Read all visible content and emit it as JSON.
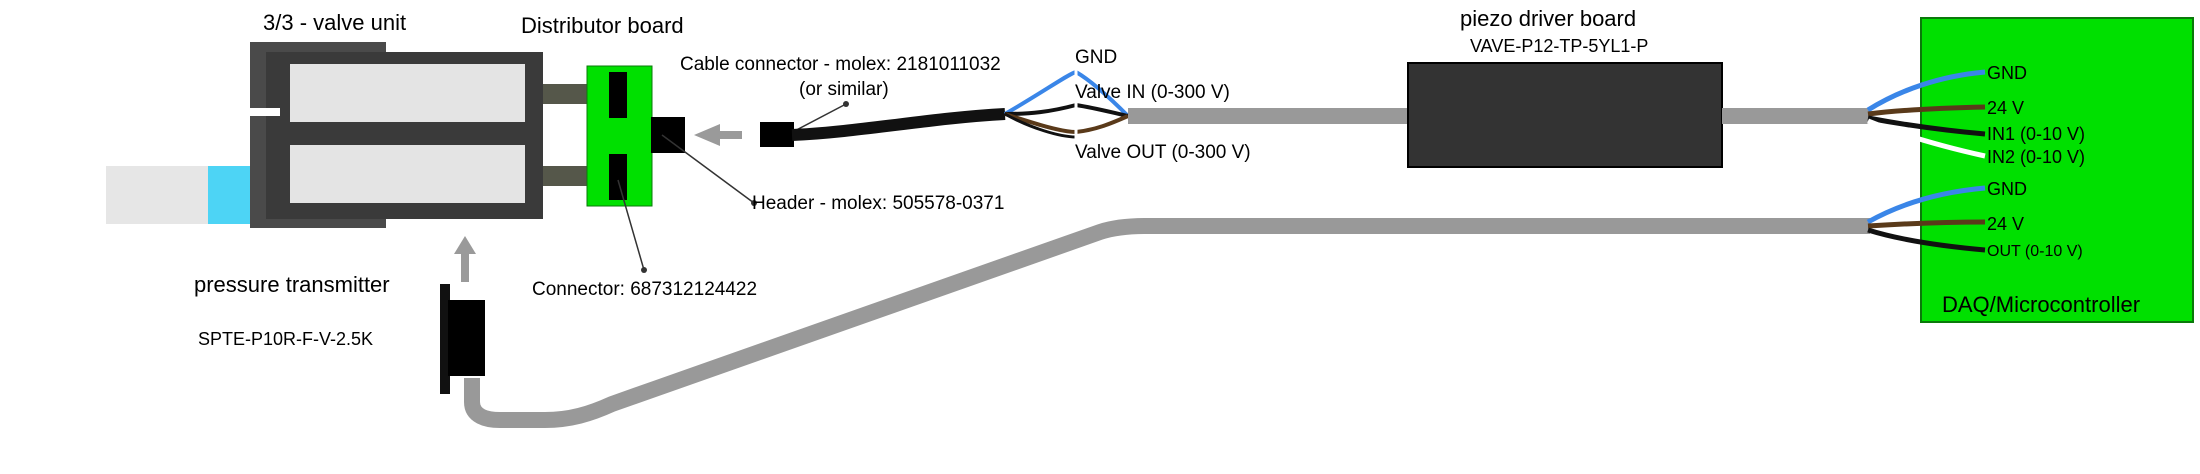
{
  "labels": {
    "valve_unit": "3/3 - valve unit",
    "distributor_board": "Distributor board",
    "cable_connector_line1": "Cable connector - molex: 2181011032",
    "cable_connector_line2": "(or similar)",
    "header": "Header - molex: 505578-0371",
    "connector": "Connector: 687312124422",
    "pressure_transmitter": "pressure transmitter",
    "transmitter_model": "SPTE-P10R-F-V-2.5K",
    "piezo_driver_title": "piezo driver board",
    "piezo_driver_model": "VAVE-P12-TP-5YL1-P",
    "wire_gnd": "GND",
    "wire_valve_in": "Valve IN (0-300 V)",
    "wire_valve_out": "Valve OUT (0-300 V)",
    "daq_title": "DAQ/Microcontroller"
  },
  "daq_pins_driver": [
    {
      "label": "GND",
      "color": "#3a86e8"
    },
    {
      "label": "24 V",
      "color": "#5a3a1a"
    },
    {
      "label": "IN1 (0-10 V)",
      "color": "#111111"
    },
    {
      "label": "IN2 (0-10 V)",
      "color": "#ffffff"
    }
  ],
  "daq_pins_sensor": [
    {
      "label": "GND",
      "color": "#3a86e8"
    },
    {
      "label": "24 V",
      "color": "#5a3a1a"
    },
    {
      "label": "OUT (0-10 V)",
      "color": "#111111"
    }
  ],
  "colors": {
    "board_green": "#00e000",
    "cable_gray": "#999999",
    "valve_body": "#3a3a3a",
    "valve_chamber": "#e4e4e4",
    "tube_cyan": "#4dd4f5",
    "arrow_gray": "#9a9a9a"
  }
}
